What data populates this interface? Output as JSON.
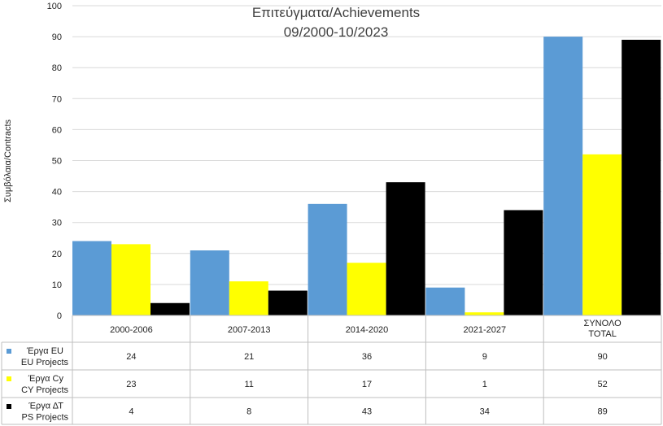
{
  "chart_data": {
    "type": "bar",
    "title": "Επιτεύγματα/Achievements",
    "subtitle": "09/2000-10/2023",
    "ylabel": "Συμβόλαια/Contracts",
    "xlabel": "",
    "ylim": [
      0,
      100
    ],
    "yticks": [
      0,
      10,
      20,
      30,
      40,
      50,
      60,
      70,
      80,
      90,
      100
    ],
    "grid": true,
    "legend_placement": "data-table",
    "categories": [
      [
        "2000-2006"
      ],
      [
        "2007-2013"
      ],
      [
        "2014-2020"
      ],
      [
        "2021-2027"
      ],
      [
        "ΣΥΝΟΛΟ",
        "TOTAL"
      ]
    ],
    "series": [
      {
        "name": [
          "Έργα EU",
          "EU Projects"
        ],
        "color": "#5b9bd5",
        "values": [
          24,
          21,
          36,
          9,
          90
        ]
      },
      {
        "name": [
          "Έργα Cy",
          "CY Projects"
        ],
        "color": "#ffff00",
        "values": [
          23,
          11,
          17,
          1,
          52
        ]
      },
      {
        "name": [
          "Έργα ΔΤ",
          "PS Projects"
        ],
        "color": "#000000",
        "values": [
          4,
          8,
          43,
          34,
          89
        ]
      }
    ]
  }
}
